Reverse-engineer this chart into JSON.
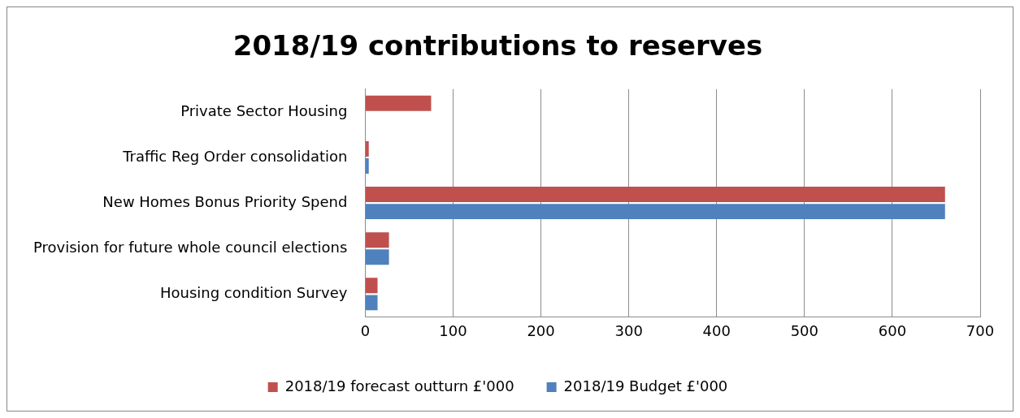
{
  "chart_data": {
    "type": "bar",
    "orientation": "horizontal",
    "title": "2018/19 contributions to reserves",
    "categories": [
      "Private Sector Housing",
      "Traffic Reg Order consolidation",
      "New Homes Bonus Priority Spend",
      "Provision for future whole council elections",
      "Housing condition Survey"
    ],
    "series": [
      {
        "name": "2018/19 forecast outturn £'000",
        "color": "#c0504d",
        "values": [
          75,
          4,
          660,
          27,
          14
        ]
      },
      {
        "name": "2018/19 Budget £'000",
        "color": "#4f81bd",
        "values": [
          null,
          4,
          660,
          27,
          14
        ]
      }
    ],
    "xlim": [
      0,
      700
    ],
    "xticks": [
      0,
      100,
      200,
      300,
      400,
      500,
      600,
      700
    ],
    "grid": "x",
    "legend": "bottom"
  }
}
